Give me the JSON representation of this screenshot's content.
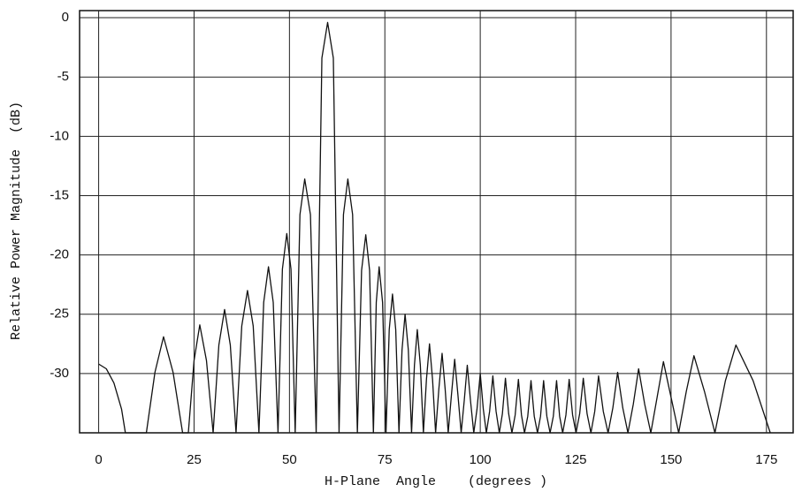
{
  "chart_data": {
    "type": "line",
    "x_label": "H-Plane  Angle    (degrees )",
    "y_label": "Relative Power Magnitude  (dB)",
    "xlim": [
      -5,
      182
    ],
    "ylim": [
      -35,
      0.6
    ],
    "xticks": [
      0,
      25,
      50,
      75,
      100,
      125,
      150,
      175
    ],
    "yticks": [
      0,
      -5,
      -10,
      -15,
      -20,
      -25,
      -30
    ],
    "grid": true,
    "color": "#111111",
    "x": [
      0,
      2,
      4,
      6,
      7,
      12.5,
      14.75,
      17,
      19.5,
      22,
      23.5,
      25,
      26.5,
      28.25,
      30,
      31.5,
      33,
      34.5,
      36,
      37.5,
      39,
      40.5,
      42,
      43.25,
      44.5,
      45.75,
      47,
      48.15,
      49.3,
      50.4,
      51.5,
      52.75,
      54,
      55.5,
      57,
      58.5,
      60,
      61.5,
      63,
      64.15,
      65.3,
      66.55,
      67.8,
      68.9,
      70,
      71,
      72,
      72.75,
      73.5,
      74.4,
      75.3,
      76.15,
      77,
      77.85,
      78.7,
      79.5,
      80.3,
      81.15,
      82,
      82.75,
      83.5,
      84.3,
      85.1,
      85.9,
      86.7,
      87.5,
      88.3,
      89.15,
      90,
      90.8,
      91.6,
      92.45,
      93.3,
      94.15,
      95,
      95.8,
      96.6,
      97.45,
      98.3,
      99.15,
      100,
      100.8,
      101.6,
      102.45,
      103.3,
      104.15,
      105,
      105.8,
      106.6,
      107.45,
      108.3,
      109.15,
      110,
      110.8,
      111.6,
      112.45,
      113.3,
      114.15,
      115,
      115.8,
      116.6,
      117.45,
      118.3,
      119.15,
      120,
      120.8,
      121.6,
      122.45,
      123.3,
      124.2,
      125.1,
      126.05,
      127,
      128,
      129,
      130,
      131,
      132.25,
      133.5,
      134.75,
      136,
      137.35,
      138.7,
      140.1,
      141.5,
      143.1,
      144.7,
      146.35,
      148,
      150,
      152,
      154,
      156,
      158.75,
      161.5,
      164.25,
      167,
      171.5,
      176
    ],
    "values": [
      -29.2,
      -29.6,
      -30.8,
      -33,
      -35,
      -35,
      -29.9,
      -26.9,
      -29.9,
      -35,
      -35,
      -28.9,
      -25.9,
      -28.9,
      -35,
      -27.6,
      -24.6,
      -27.6,
      -35,
      -26,
      -23,
      -26,
      -35,
      -24,
      -21,
      -24,
      -35,
      -21.2,
      -18.2,
      -21.2,
      -35,
      -16.6,
      -13.6,
      -16.6,
      -35,
      -3.4,
      -0.4,
      -3.4,
      -35,
      -16.6,
      -13.6,
      -16.6,
      -35,
      -21.3,
      -18.3,
      -21.3,
      -35,
      -24,
      -21,
      -24,
      -35,
      -26.3,
      -23.3,
      -26.3,
      -35,
      -28,
      -25,
      -28,
      -35,
      -29.3,
      -26.3,
      -29.3,
      -35,
      -30.5,
      -27.5,
      -30.5,
      -35,
      -31.3,
      -28.3,
      -31.3,
      -35,
      -31.8,
      -28.8,
      -31.8,
      -35,
      -32.3,
      -29.3,
      -32.3,
      -35,
      -33,
      -30,
      -33,
      -35,
      -33.2,
      -30.2,
      -33.2,
      -35,
      -33.4,
      -30.4,
      -33.4,
      -35,
      -33.5,
      -30.5,
      -33.5,
      -35,
      -33.6,
      -30.6,
      -33.6,
      -35,
      -33.6,
      -30.6,
      -33.6,
      -35,
      -33.6,
      -30.6,
      -33.6,
      -35,
      -33.5,
      -30.5,
      -33.5,
      -35,
      -33.4,
      -30.4,
      -33.4,
      -35,
      -33.2,
      -30.2,
      -33.2,
      -35,
      -32.9,
      -29.9,
      -32.9,
      -35,
      -32.6,
      -29.6,
      -32.6,
      -35,
      -32,
      -29,
      -32,
      -35,
      -31.5,
      -28.5,
      -31.5,
      -35,
      -30.6,
      -27.6,
      -30.6,
      -35
    ]
  }
}
